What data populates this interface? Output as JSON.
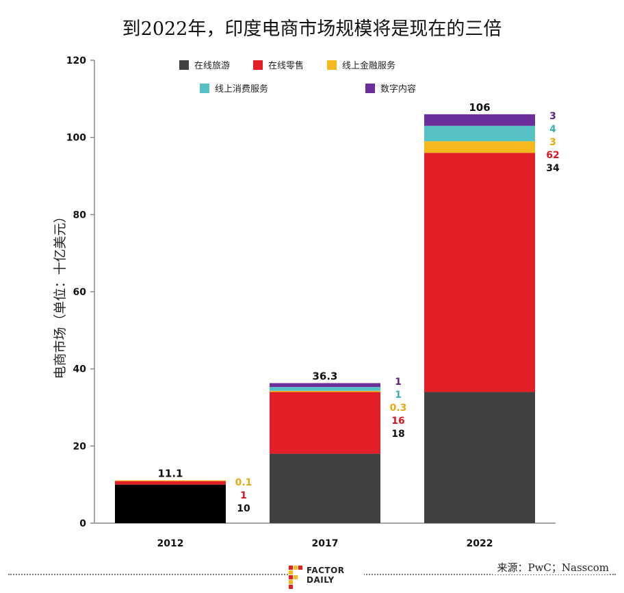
{
  "title": "到2022年，印度电商市场规模将是现在的三倍",
  "source": "来源：PwC；Nasscom",
  "brand": {
    "line1": "FACTOR",
    "line2": "DAILY"
  },
  "chart_data": {
    "type": "bar",
    "stacked": true,
    "title": "到2022年，印度电商市场规模将是现在的三倍",
    "ylabel": "电商市场（单位：十亿美元）",
    "xlabel": "",
    "ylim": [
      0,
      120
    ],
    "yticks": [
      0,
      20,
      40,
      60,
      80,
      100,
      120
    ],
    "grid": false,
    "legend_position": "top",
    "categories": [
      "2012",
      "2017",
      "2022"
    ],
    "totals": [
      "11.1",
      "36.3",
      "106"
    ],
    "series": [
      {
        "name": "在线旅游",
        "color": "#404040",
        "values": [
          10,
          18,
          34
        ],
        "labels": [
          "10",
          "18",
          "34"
        ],
        "label_color": "#111111"
      },
      {
        "name": "在线零售",
        "color": "#e21f26",
        "values": [
          1,
          16,
          62
        ],
        "labels": [
          "1",
          "16",
          "62"
        ],
        "label_color": "#d7161f"
      },
      {
        "name": "线上金融服务",
        "color": "#f5b91e",
        "values": [
          0.1,
          0.3,
          3
        ],
        "labels": [
          "0.1",
          "0.3",
          "3"
        ],
        "label_color": "#e8a812"
      },
      {
        "name": "线上消费服务",
        "color": "#55c1c4",
        "values": [
          0,
          1,
          4
        ],
        "labels": [
          "",
          "1",
          "4"
        ],
        "label_color": "#3fb0b4"
      },
      {
        "name": "数字内容",
        "color": "#6b2e9a",
        "values": [
          0,
          1,
          3
        ],
        "labels": [
          "",
          "1",
          "3"
        ],
        "label_color": "#5a2683"
      }
    ],
    "first_bar_travel_color": "#000000"
  }
}
